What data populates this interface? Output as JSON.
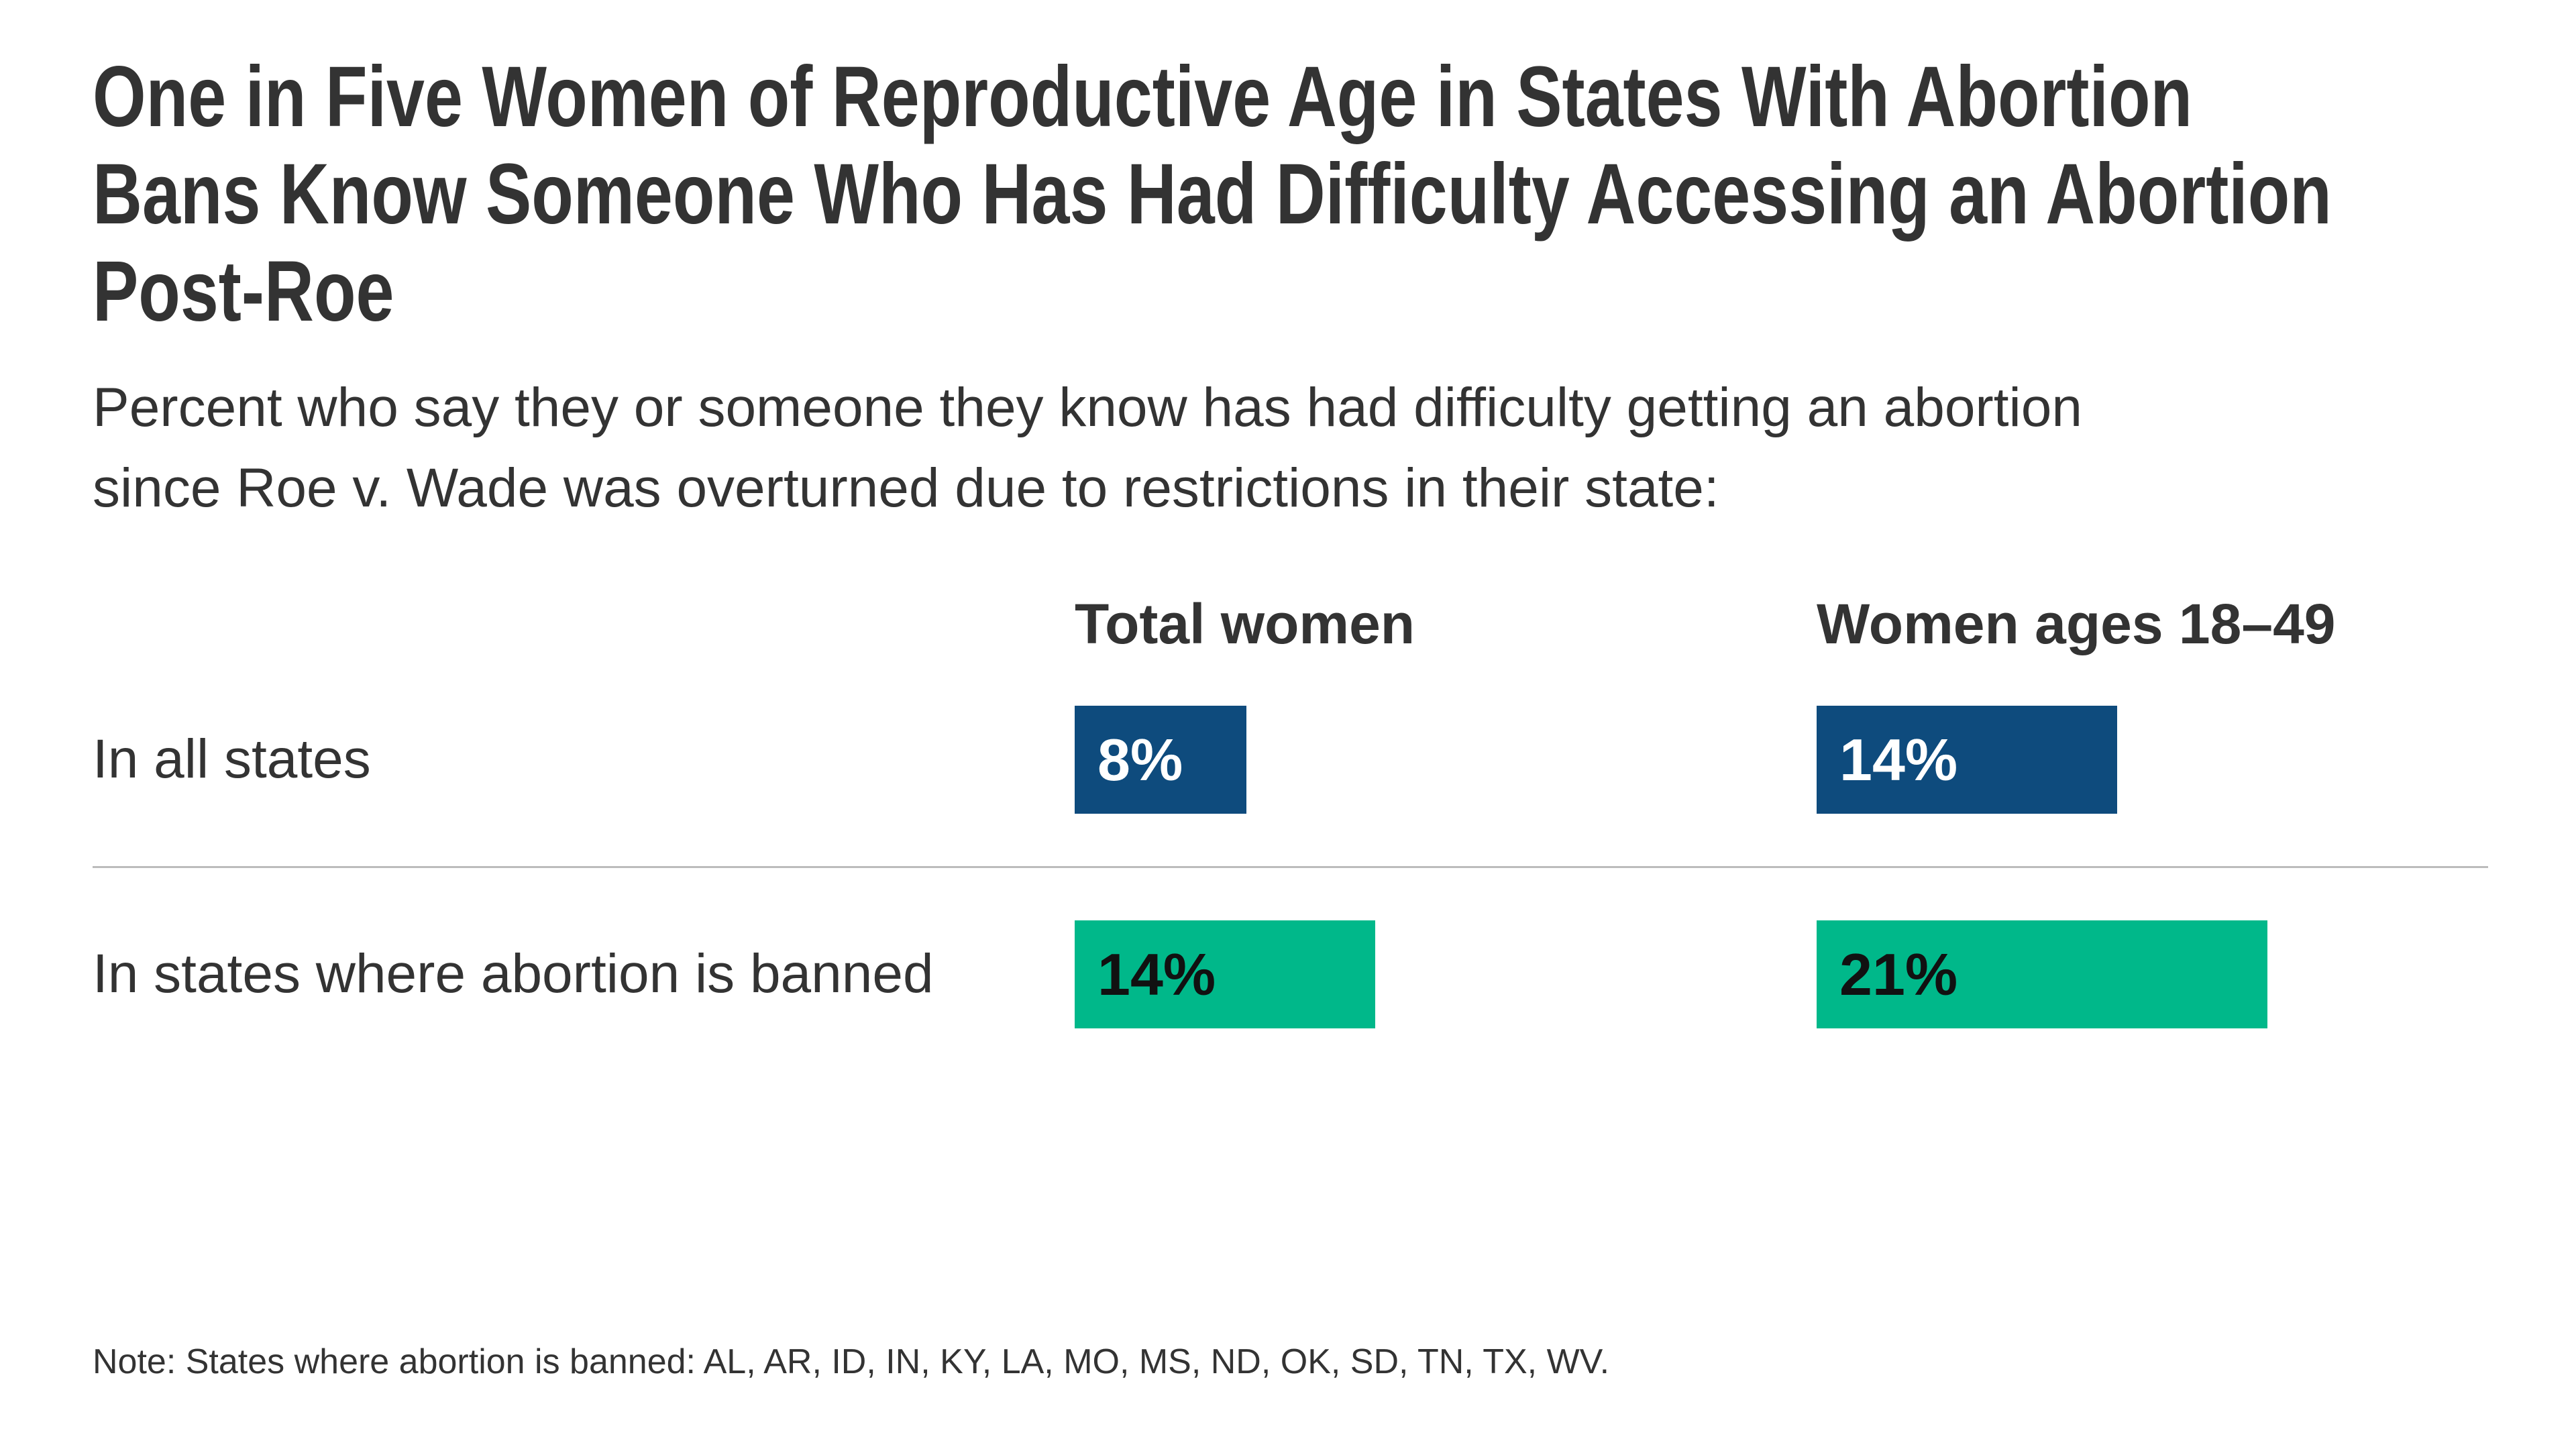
{
  "title": {
    "line1": "One in Five Women of Reproductive Age in States With Abortion",
    "line2": "Bans Know Someone Who Has Had Difficulty Accessing an Abortion",
    "line3": "Post-Roe"
  },
  "subtitle": {
    "line1": "Percent who say they or someone they know has had difficulty getting an abortion",
    "line2": "since Roe v. Wade was overturned due to restrictions in their state:"
  },
  "note": "Note: States where abortion is banned: AL, AR, ID, IN, KY, LA, MO, MS, ND, OK, SD, TN, TX, WV.",
  "colors": {
    "navy_bar": "#0e4b7d",
    "green_bar": "#00b88a",
    "white_value_text": "#ffffff",
    "black_value_text": "#111111",
    "divider_gray": "#bcbcbc",
    "text": "#333333"
  },
  "chart_data": {
    "type": "bar",
    "orientation": "horizontal",
    "title": "One in Five Women of Reproductive Age in States With Abortion Bans Know Someone Who Has Had Difficulty Accessing an Abortion Post-Roe",
    "subtitle": "Percent who say they or someone they know has had difficulty getting an abortion since Roe v. Wade was overturned due to restrictions in their state:",
    "unit": "percent",
    "legend_position": "none",
    "grid": false,
    "columns": [
      "Total women",
      "Women ages 18–49"
    ],
    "rows": [
      {
        "label": "In all states",
        "values": [
          8,
          14
        ],
        "value_labels": [
          "8%",
          "14%"
        ],
        "bar_color": "#0e4b7d",
        "value_text_color": "#ffffff"
      },
      {
        "label": "In states where abortion is banned",
        "values": [
          14,
          21
        ],
        "value_labels": [
          "14%",
          "21%"
        ],
        "bar_color": "#00b88a",
        "value_text_color": "#111111"
      }
    ],
    "note": "Note: States where abortion is banned: AL, AR, ID, IN, KY, LA, MO, MS, ND, OK, SD, TN, TX, WV."
  }
}
